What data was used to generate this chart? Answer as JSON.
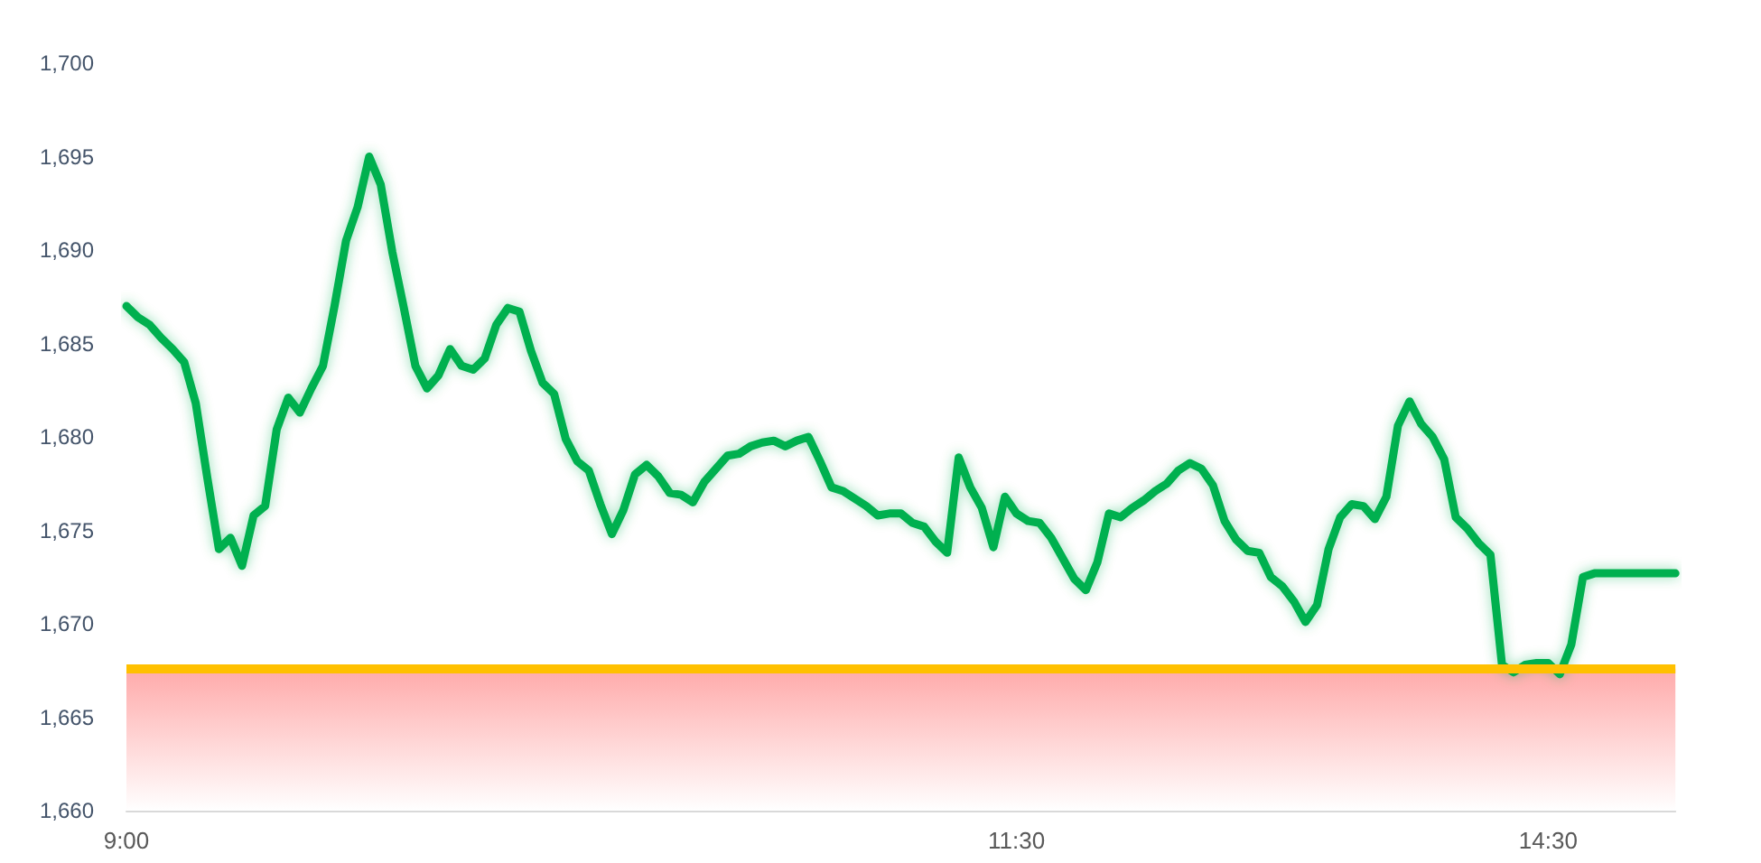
{
  "chart_data": {
    "type": "line",
    "categories": [
      "9:00",
      null,
      null,
      null,
      null,
      null,
      null,
      null,
      null,
      null,
      null,
      null,
      null,
      null,
      null,
      null,
      null,
      null,
      null,
      null,
      null,
      null,
      null,
      null,
      null,
      null,
      null,
      null,
      null,
      null,
      null,
      null,
      null,
      null,
      null,
      null,
      null,
      null,
      null,
      null,
      null,
      null,
      null,
      null,
      null,
      null,
      null,
      null,
      null,
      null,
      null,
      null,
      null,
      null,
      null,
      null,
      null,
      null,
      null,
      null,
      null,
      null,
      null,
      null,
      null,
      null,
      null,
      null,
      null,
      null,
      null,
      null,
      null,
      null,
      null,
      null,
      null,
      "11:30",
      null,
      null,
      null,
      null,
      null,
      null,
      null,
      null,
      null,
      null,
      null,
      null,
      null,
      null,
      null,
      null,
      null,
      null,
      null,
      null,
      null,
      null,
      null,
      null,
      null,
      null,
      null,
      null,
      null,
      null,
      null,
      null,
      null,
      null,
      null,
      null,
      null,
      null,
      null,
      null,
      null,
      null,
      null,
      null,
      null,
      "14:30",
      null,
      null,
      null,
      null,
      null,
      null,
      null,
      null,
      null,
      null,
      null
    ],
    "series": [
      {
        "color": "#00b050",
        "values": [
          1687.0,
          1686.4,
          1686.0,
          1685.3,
          1684.7,
          1684.0,
          1681.8,
          1677.8,
          1674.0,
          1674.6,
          1673.1,
          1675.8,
          1676.3,
          1680.4,
          1682.1,
          1681.3,
          1682.6,
          1683.8,
          1687.0,
          1690.5,
          1692.3,
          1695.0,
          1693.5,
          1689.9,
          1686.9,
          1683.8,
          1682.6,
          1683.3,
          1684.7,
          1683.8,
          1683.6,
          1684.2,
          1686.0,
          1686.9,
          1686.7,
          1684.6,
          1682.9,
          1682.3,
          1679.9,
          1678.7,
          1678.2,
          1676.4,
          1674.8,
          1676.1,
          1678.0,
          1678.5,
          1677.9,
          1677.0,
          1676.9,
          1676.5,
          1677.6,
          1678.3,
          1679.0,
          1679.1,
          1679.5,
          1679.7,
          1679.8,
          1679.5,
          1679.8,
          1680.0,
          1678.7,
          1677.3,
          1677.1,
          1676.7,
          1676.3,
          1675.8,
          1675.9,
          1675.9,
          1675.4,
          1675.2,
          1674.4,
          1673.8,
          1678.9,
          1677.3,
          1676.2,
          1674.1,
          1676.8,
          1675.9,
          1675.5,
          1675.4,
          1674.6,
          1673.5,
          1672.4,
          1671.8,
          1673.3,
          1675.9,
          1675.7,
          1676.2,
          1676.6,
          1677.1,
          1677.5,
          1678.2,
          1678.6,
          1678.3,
          1677.4,
          1675.5,
          1674.5,
          1673.9,
          1673.8,
          1672.5,
          1672.0,
          1671.2,
          1670.1,
          1671.0,
          1674.0,
          1675.7,
          1676.4,
          1676.3,
          1675.6,
          1676.8,
          1680.6,
          1681.9,
          1680.7,
          1680.0,
          1678.8,
          1675.7,
          1675.1,
          1674.3,
          1673.7,
          1667.8,
          1667.4,
          1667.8,
          1667.9,
          1667.9,
          1667.3,
          1668.9,
          1672.5,
          1672.7,
          1672.7,
          1672.7,
          1672.7,
          1672.7,
          1672.7,
          1672.7,
          1672.7
        ]
      }
    ],
    "ylim": [
      1660,
      1700
    ],
    "yticks": [
      {
        "value": 1660,
        "label": "1,660"
      },
      {
        "value": 1665,
        "label": "1,665"
      },
      {
        "value": 1670,
        "label": "1,670"
      },
      {
        "value": 1675,
        "label": "1,675"
      },
      {
        "value": 1680,
        "label": "1,680"
      },
      {
        "value": 1685,
        "label": "1,685"
      },
      {
        "value": 1690,
        "label": "1,690"
      },
      {
        "value": 1695,
        "label": "1,695"
      },
      {
        "value": 1700,
        "label": "1,700"
      }
    ],
    "ref_lines": [
      {
        "axis": "y",
        "value": 1667.6,
        "color": "#ffc000"
      }
    ],
    "bands": [
      {
        "axis": "y",
        "from": 1660,
        "to": 1667.6,
        "color": "#ffaaaa"
      }
    ]
  }
}
